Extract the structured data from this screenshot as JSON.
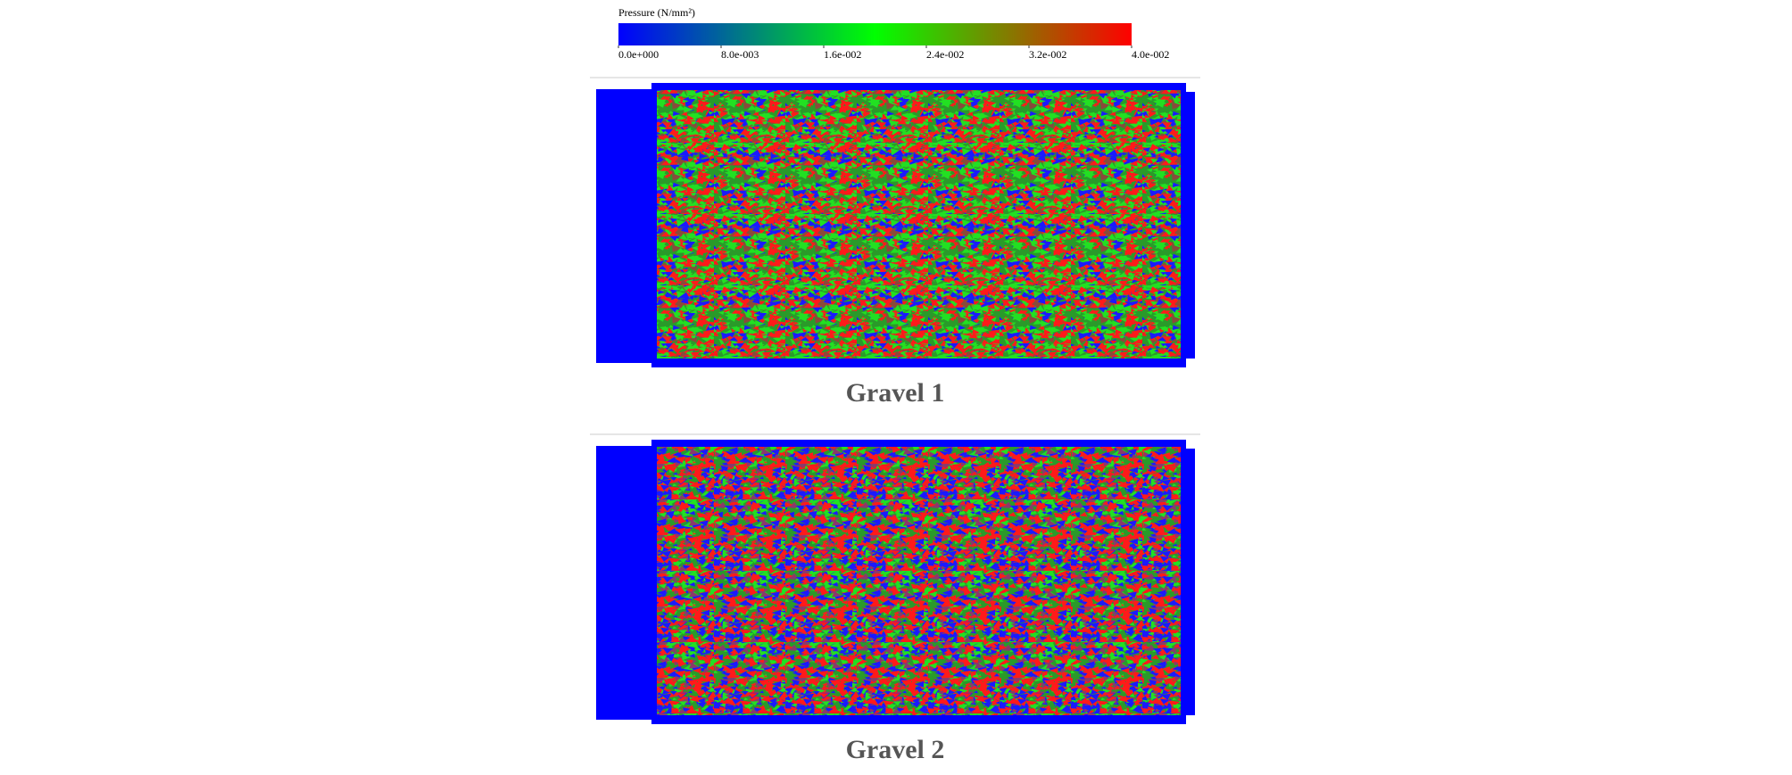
{
  "colorbar": {
    "title": "Pressure (N/mm²)",
    "lim": [
      0,
      0.04
    ],
    "colors": [
      "#0000ff",
      "#00ff00",
      "#ff0000"
    ],
    "ticks": [
      {
        "value": 0,
        "label": "0.0e+000"
      },
      {
        "value": 0.008,
        "label": "8.0e-003"
      },
      {
        "value": 0.016,
        "label": "1.6e-002"
      },
      {
        "value": 0.024,
        "label": "2.4e-002"
      },
      {
        "value": 0.032,
        "label": "3.2e-002"
      },
      {
        "value": 0.04,
        "label": "4.0e-002"
      }
    ]
  },
  "panels": [
    {
      "label": "Gravel 1"
    },
    {
      "label": "Gravel 2"
    }
  ]
}
